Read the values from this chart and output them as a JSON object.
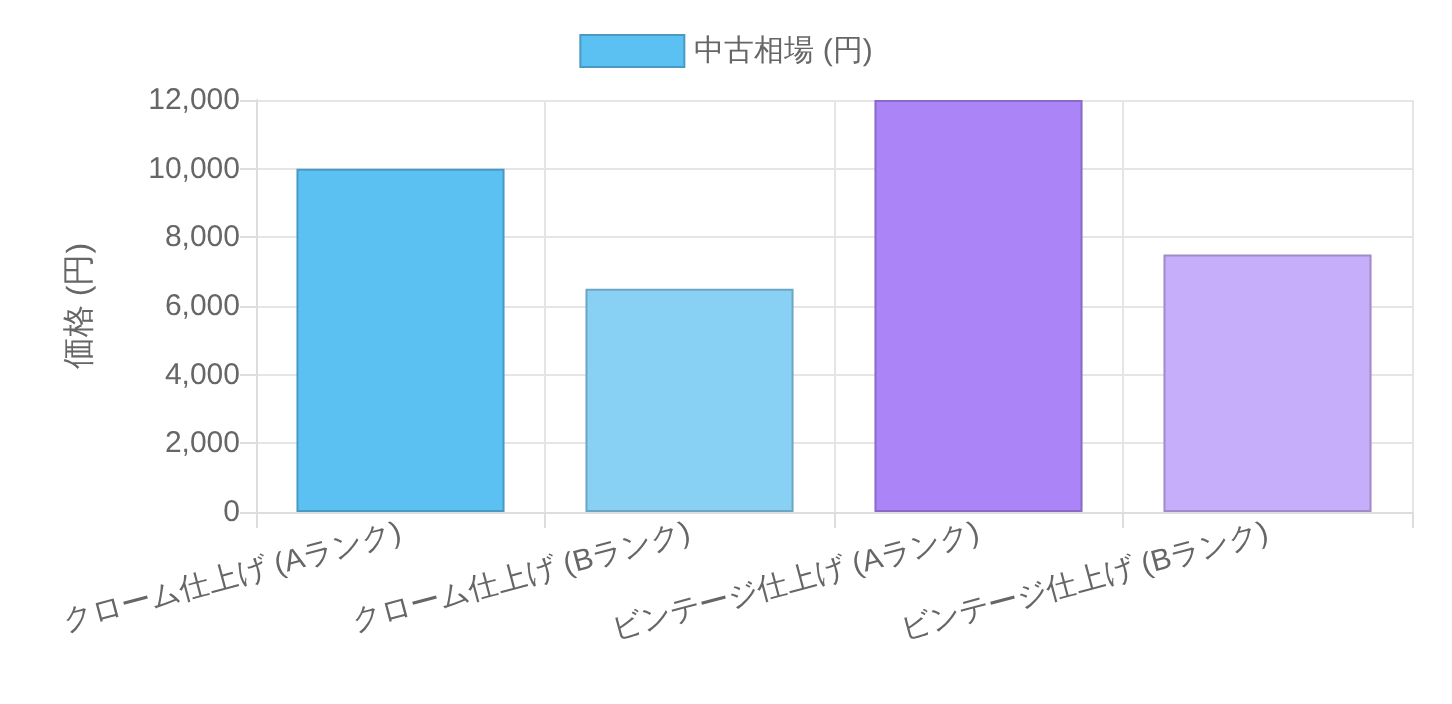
{
  "chart_data": {
    "type": "bar",
    "ylabel": "価格 (円)",
    "categories": [
      "クローム仕上げ (Aランク)",
      "クローム仕上げ (Bランク)",
      "ビンテージ仕上げ (Aランク)",
      "ビンテージ仕上げ (Bランク)"
    ],
    "series": [
      {
        "name": "中古相場 (円)",
        "values": [
          10000,
          6500,
          12000,
          7500
        ]
      }
    ],
    "colors": [
      "#5bc0f2",
      "#88d0f4",
      "#ab84f7",
      "#c6aefa"
    ],
    "ylim": [
      0,
      12000
    ],
    "yticks": [
      0,
      {
        "value": 2000,
        "label": "2,000"
      },
      {
        "value": 4000,
        "label": "4,000"
      },
      {
        "value": 6000,
        "label": "6,000"
      },
      {
        "value": 8000,
        "label": "8,000"
      },
      {
        "value": 10000,
        "label": "10,000"
      },
      {
        "value": 12000,
        "label": "12,000"
      }
    ],
    "grid": true,
    "legend": "top"
  }
}
